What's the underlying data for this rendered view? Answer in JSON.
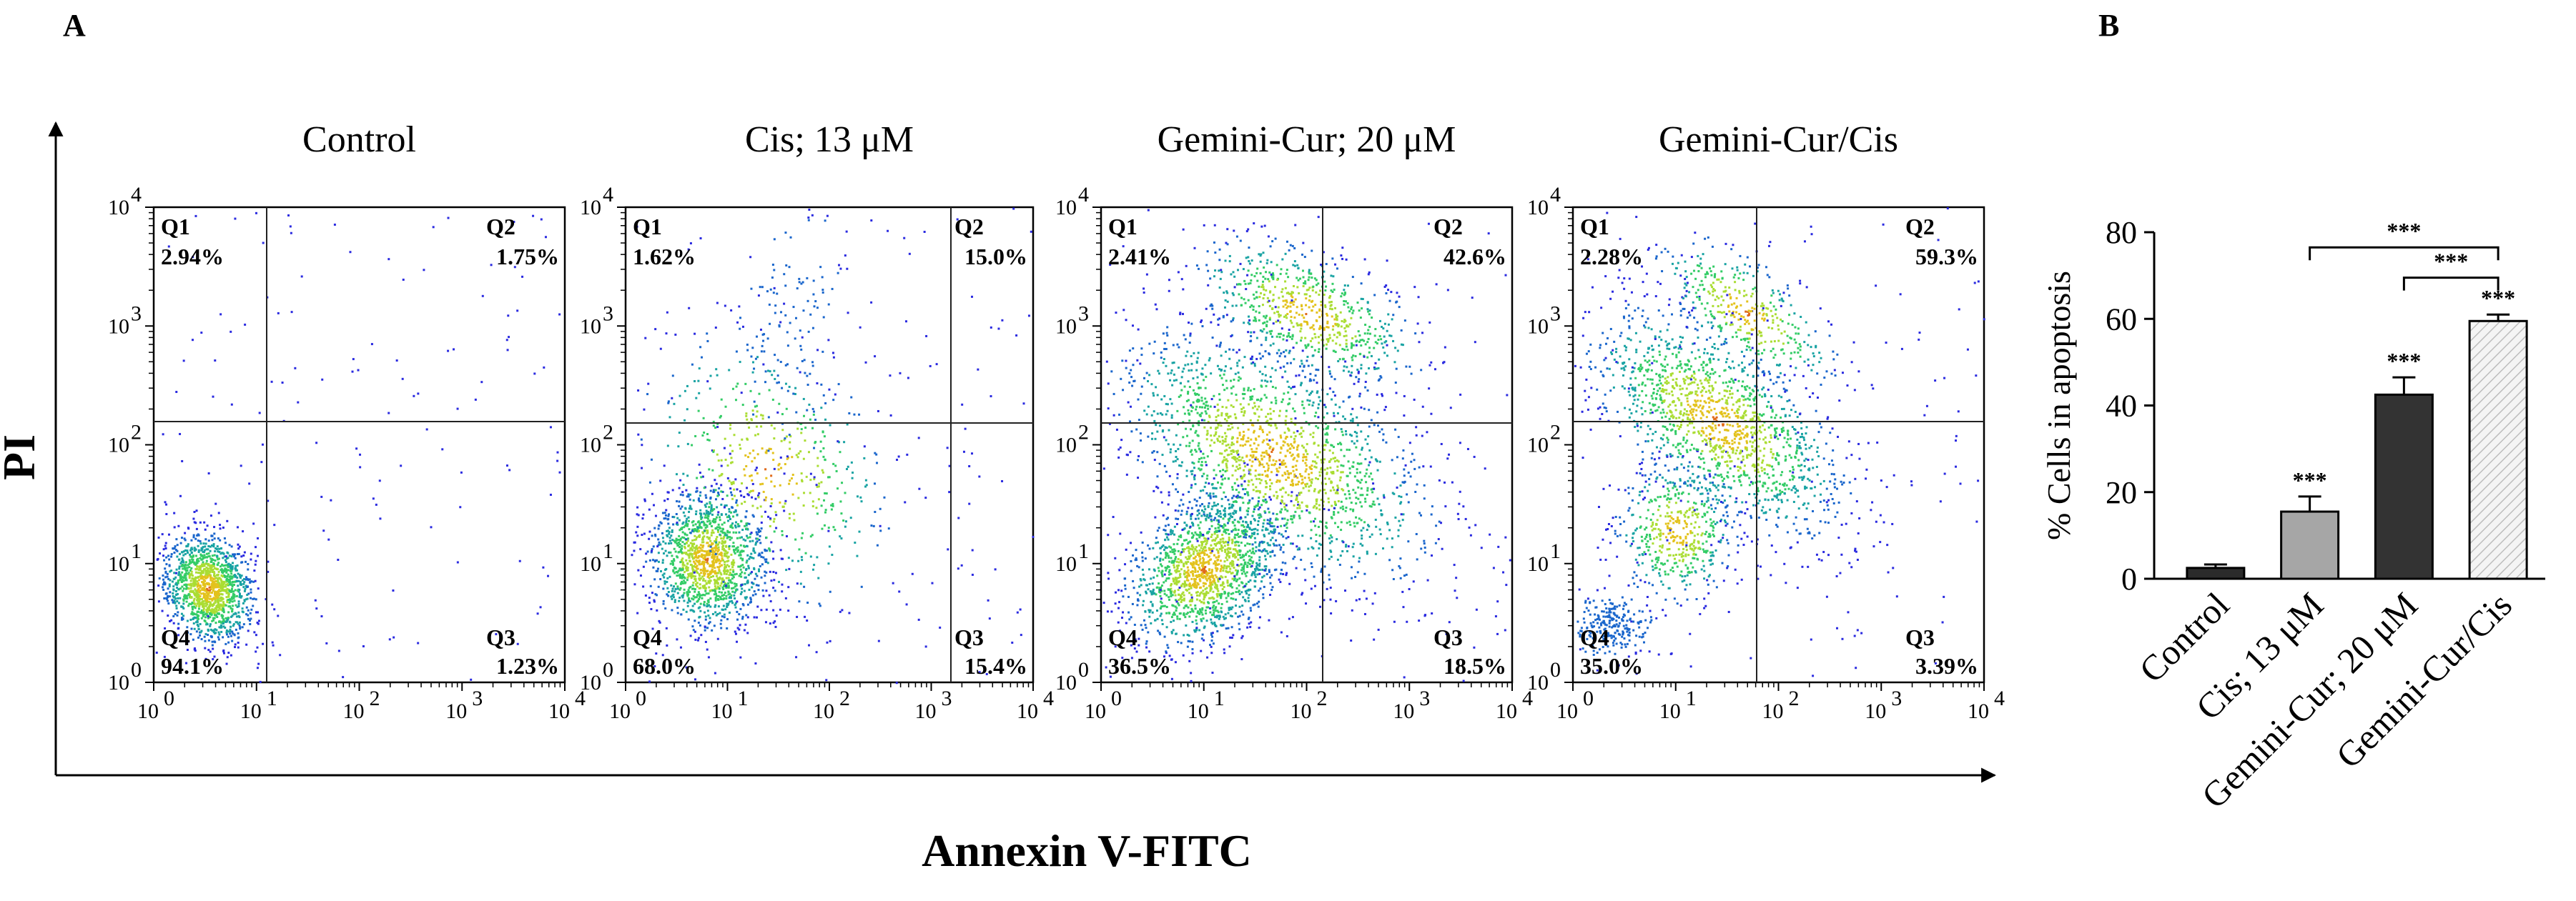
{
  "panel_a": {
    "letter": "A",
    "x_axis_label": "Annexin V-FITC",
    "y_axis_label": "PI",
    "plots": [
      {
        "title": "Control",
        "q1": "2.94%",
        "q2": "1.75%",
        "q3": "1.23%",
        "q4": "94.1%"
      },
      {
        "title": "Cis; 13 μM",
        "q1": "1.62%",
        "q2": "15.0%",
        "q3": "15.4%",
        "q4": "68.0%"
      },
      {
        "title": "Gemini-Cur; 20 μM",
        "q1": "2.41%",
        "q2": "42.6%",
        "q3": "18.5%",
        "q4": "36.5%"
      },
      {
        "title": "Gemini-Cur/Cis",
        "q1": "2.28%",
        "q2": "59.3%",
        "q3": "3.39%",
        "q4": "35.0%"
      }
    ],
    "quadrant_names": [
      "Q1",
      "Q2",
      "Q3",
      "Q4"
    ],
    "log_ticks": [
      "10",
      "10",
      "10",
      "10",
      "10"
    ],
    "log_exponents": [
      "0",
      "1",
      "2",
      "3",
      "4"
    ]
  },
  "chart_data": {
    "type": "bar",
    "panel_letter": "B",
    "categories": [
      "Control",
      "Cis; 13 μM",
      "Gemini-Cur; 20 μM",
      "Gemini-Cur/Cis"
    ],
    "values": [
      2.5,
      15.5,
      42.5,
      59.5
    ],
    "errors": [
      0.8,
      3.5,
      4.0,
      1.5
    ],
    "bar_colors": [
      "#2b2b2b",
      "#a6a6a6",
      "#333333",
      "#eeeeee"
    ],
    "ylabel": "% Cells in apoptosis",
    "xlabel": "",
    "ylim": [
      0,
      80
    ],
    "yticks": [
      0,
      20,
      40,
      60,
      80
    ],
    "significance": [
      "***",
      "***",
      "***"
    ],
    "brackets": [
      {
        "from": "Cis; 13 μM",
        "to": "Gemini-Cur/Cis",
        "label": "***"
      },
      {
        "from": "Gemini-Cur; 20 μM",
        "to": "Gemini-Cur/Cis",
        "label": "***"
      }
    ]
  }
}
